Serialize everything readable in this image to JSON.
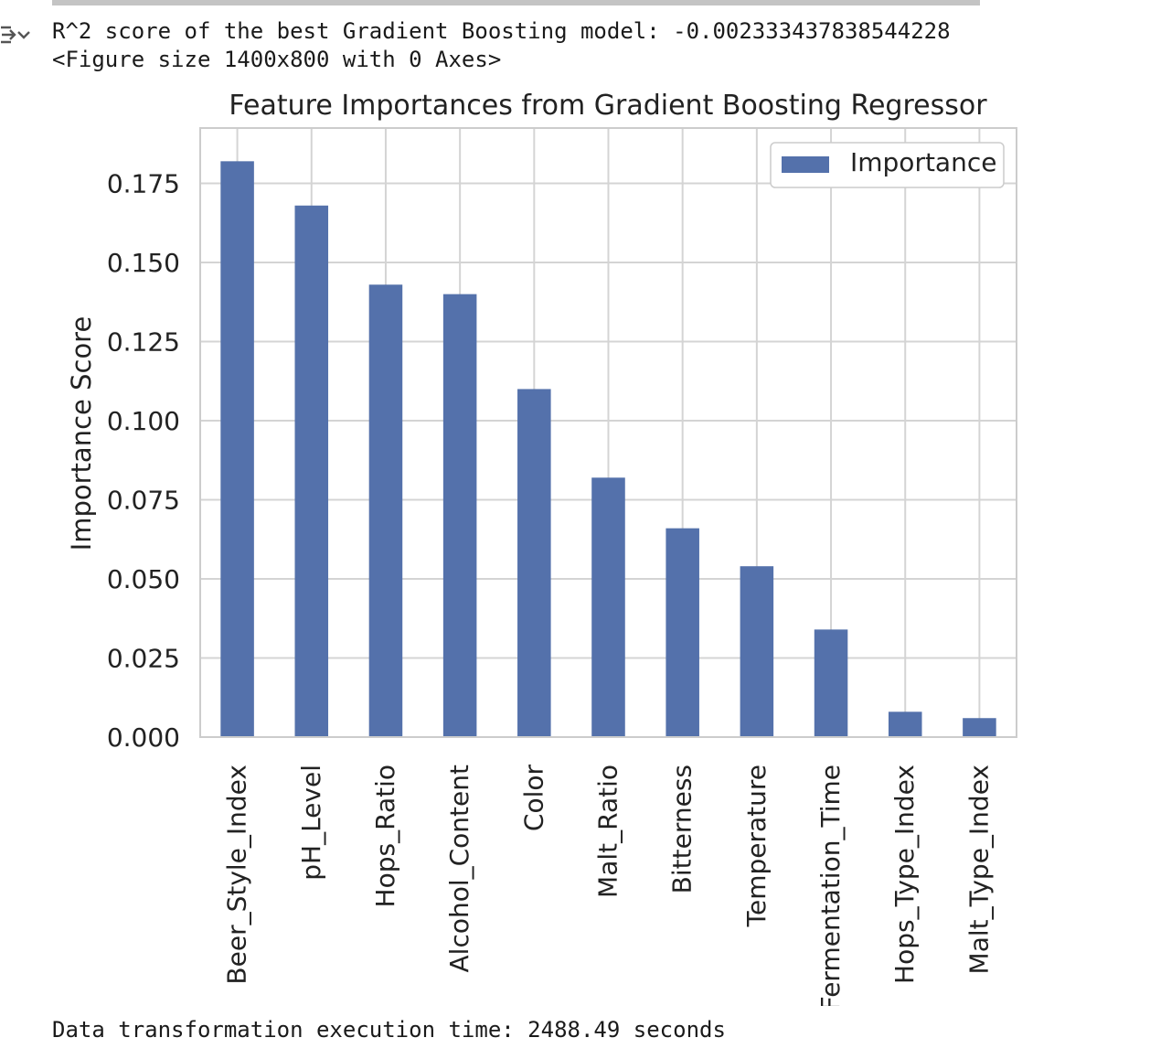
{
  "output": {
    "r2_line": "R^2 score of the best Gradient Boosting model: -0.002333437838544228",
    "figure_line": "<Figure size 1400x800 with 0 Axes>",
    "footer_line": "Data transformation execution time: 2488.49 seconds",
    "icon": "output-collapse-icon"
  },
  "chart_data": {
    "type": "bar",
    "title": "Feature Importances from Gradient Boosting Regressor",
    "xlabel": "",
    "ylabel": "Importance Score",
    "categories": [
      "Beer_Style_Index",
      "pH_Level",
      "Hops_Ratio",
      "Alcohol_Content",
      "Color",
      "Malt_Ratio",
      "Bitterness",
      "Temperature",
      "Fermentation_Time",
      "Hops_Type_Index",
      "Malt_Type_Index"
    ],
    "series": [
      {
        "name": "Importance",
        "values": [
          0.182,
          0.168,
          0.143,
          0.14,
          0.11,
          0.082,
          0.066,
          0.054,
          0.034,
          0.008,
          0.006
        ]
      }
    ],
    "ylim": [
      0,
      0.1925
    ],
    "yticks": [
      0.0,
      0.025,
      0.05,
      0.075,
      0.1,
      0.125,
      0.15,
      0.175
    ],
    "ytick_labels": [
      "0.000",
      "0.025",
      "0.050",
      "0.075",
      "0.100",
      "0.125",
      "0.150",
      "0.175"
    ],
    "grid": true,
    "legend_position": "top-right",
    "bar_color": "#5471ab",
    "grid_color": "#d4d4d4",
    "background_color": "#ffffff"
  }
}
